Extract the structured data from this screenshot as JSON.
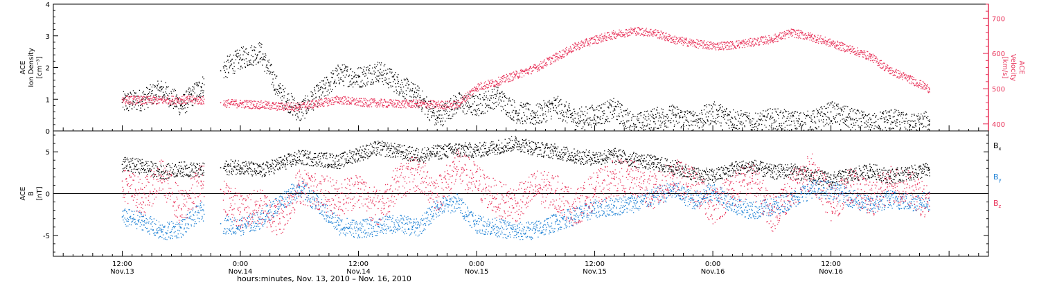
{
  "chart_data": [
    {
      "type": "scatter",
      "panel": "top",
      "ylabel_left_lines": [
        "ACE",
        "Ion Density"
      ],
      "ylabel_left_unit": "[cm⁻³]",
      "ylabel_right_lines": [
        "ACE",
        "Velocity"
      ],
      "ylabel_right_unit": "[km/s]",
      "ylim_left": [
        0,
        4
      ],
      "yticks_left": [
        "0",
        "1",
        "2",
        "3",
        "4"
      ],
      "ylim_right": [
        380,
        740
      ],
      "yticks_right": [
        "400",
        "500",
        "600",
        "700"
      ],
      "series": [
        {
          "name": "",
          "axis": "left",
          "color": "#000000",
          "x": [
            0,
            2,
            4,
            6,
            8,
            10,
            12,
            14,
            16,
            18,
            22,
            24,
            26,
            28,
            30,
            32,
            34,
            36,
            38,
            40,
            42,
            44,
            46,
            48,
            50,
            52,
            54,
            56,
            58,
            60,
            62,
            64,
            66,
            68,
            70,
            72,
            74,
            76,
            78,
            80,
            82
          ],
          "y": [
            0.9,
            1.0,
            1.3,
            0.8,
            1.4,
            1.9,
            2.3,
            2.5,
            1.2,
            0.6,
            1.8,
            1.7,
            1.9,
            1.5,
            1.1,
            0.4,
            0.9,
            0.8,
            1.1,
            0.6,
            0.5,
            0.8,
            0.4,
            0.5,
            0.7,
            0.2,
            0.4,
            0.5,
            0.3,
            0.6,
            0.4,
            0.2,
            0.4,
            0.3,
            0.3,
            0.6,
            0.4,
            0.2,
            0.4,
            0.2,
            0.3
          ]
        },
        {
          "name": "",
          "axis": "right",
          "color": "#e8335a",
          "x": [
            0,
            2,
            4,
            6,
            8,
            10,
            12,
            14,
            16,
            18,
            22,
            24,
            26,
            28,
            30,
            32,
            34,
            36,
            38,
            40,
            42,
            44,
            46,
            48,
            50,
            52,
            54,
            56,
            58,
            60,
            62,
            64,
            66,
            68,
            70,
            72,
            74,
            76,
            78,
            80,
            82
          ],
          "y": [
            470,
            468,
            468,
            470,
            468,
            460,
            458,
            455,
            450,
            450,
            470,
            462,
            460,
            458,
            458,
            455,
            455,
            505,
            520,
            540,
            560,
            590,
            620,
            640,
            655,
            665,
            660,
            640,
            630,
            622,
            625,
            633,
            642,
            660,
            648,
            630,
            612,
            592,
            552,
            528,
            500
          ]
        }
      ]
    },
    {
      "type": "scatter",
      "panel": "bottom",
      "ylabel_left_lines": [
        "ACE",
        "B"
      ],
      "ylabel_left_unit": "[nT]",
      "ylim": [
        -7.5,
        7.5
      ],
      "yticks": [
        "-5",
        "0",
        "5"
      ],
      "zero_line": true,
      "legend_placement": "right",
      "series": [
        {
          "name": "B",
          "sub": "x",
          "color": "#000000",
          "x": [
            0,
            2,
            4,
            6,
            8,
            10,
            12,
            14,
            16,
            18,
            22,
            24,
            26,
            28,
            30,
            32,
            34,
            36,
            38,
            40,
            42,
            44,
            46,
            48,
            50,
            52,
            54,
            56,
            58,
            60,
            62,
            64,
            66,
            68,
            70,
            72,
            74,
            76,
            78,
            80,
            82
          ],
          "y": [
            3.5,
            3.3,
            2.6,
            3.0,
            2.8,
            3.1,
            3.3,
            2.7,
            3.6,
            4.4,
            3.9,
            4.8,
            5.5,
            5.1,
            4.6,
            5.0,
            5.3,
            5.2,
            5.6,
            6.1,
            5.4,
            5.1,
            4.5,
            4.3,
            4.6,
            4.1,
            3.7,
            3.2,
            2.4,
            2.1,
            3.0,
            3.3,
            2.6,
            2.8,
            2.1,
            1.7,
            2.2,
            2.8,
            2.1,
            2.5,
            2.9
          ]
        },
        {
          "name": "B",
          "sub": "y",
          "color": "#1a7fd4",
          "x": [
            0,
            2,
            4,
            6,
            8,
            10,
            12,
            14,
            16,
            18,
            22,
            24,
            26,
            28,
            30,
            32,
            34,
            36,
            38,
            40,
            42,
            44,
            46,
            48,
            50,
            52,
            54,
            56,
            58,
            60,
            62,
            64,
            66,
            68,
            70,
            72,
            74,
            76,
            78,
            80,
            82
          ],
          "y": [
            -2.8,
            -3.2,
            -4.6,
            -4.1,
            -2.0,
            -3.6,
            -3.9,
            -3.1,
            -1.0,
            0.8,
            -3.8,
            -4.2,
            -3.9,
            -3.5,
            -4.1,
            -1.6,
            -1.0,
            -3.6,
            -4.0,
            -4.5,
            -4.3,
            -3.4,
            -2.6,
            -1.8,
            -1.5,
            -1.1,
            -0.4,
            0.5,
            -0.8,
            0.3,
            -1.2,
            -2.0,
            -1.6,
            -0.7,
            0.6,
            0.5,
            -0.5,
            -1.4,
            -0.6,
            -1.0,
            -0.8
          ]
        },
        {
          "name": "B",
          "sub": "z",
          "color": "#e8335a",
          "x": [
            0,
            2,
            4,
            6,
            8,
            10,
            12,
            14,
            16,
            18,
            22,
            24,
            26,
            28,
            30,
            32,
            34,
            36,
            38,
            40,
            42,
            44,
            46,
            48,
            50,
            52,
            54,
            56,
            58,
            60,
            62,
            64,
            66,
            68,
            70,
            72,
            74,
            76,
            78,
            80,
            82
          ],
          "y": [
            1.5,
            -0.5,
            2.1,
            -1.8,
            1.5,
            0.5,
            -2.2,
            -1.5,
            -3.0,
            1.0,
            -0.5,
            0.6,
            -1.8,
            1.5,
            2.5,
            0.0,
            3.2,
            1.5,
            -0.6,
            -1.2,
            0.8,
            0.2,
            -1.8,
            0.5,
            2.0,
            1.8,
            0.2,
            2.1,
            1.0,
            -1.5,
            0.6,
            1.8,
            -2.4,
            0.6,
            2.8,
            -1.2,
            1.0,
            -0.6,
            1.2,
            0.7,
            -1.5
          ]
        }
      ]
    }
  ],
  "xaxis": {
    "xlim": [
      -7,
      88
    ],
    "label": "hours:minutes, Nov. 13, 2010 – Nov. 16, 2010",
    "major_ticks": [
      {
        "x": 0,
        "time": "12:00",
        "date": "Nov.13"
      },
      {
        "x": 12,
        "time": "0:00",
        "date": "Nov.14"
      },
      {
        "x": 24,
        "time": "12:00",
        "date": "Nov.14"
      },
      {
        "x": 36,
        "time": "0:00",
        "date": "Nov.15"
      },
      {
        "x": 48,
        "time": "12:00",
        "date": "Nov.15"
      },
      {
        "x": 60,
        "time": "0:00",
        "date": "Nov.16"
      },
      {
        "x": 72,
        "time": "12:00",
        "date": "Nov.16"
      }
    ],
    "data_gap": [
      8.3,
      10.2
    ]
  },
  "colors": {
    "black": "#000000",
    "pink": "#e8335a",
    "blue": "#1a7fd4"
  }
}
